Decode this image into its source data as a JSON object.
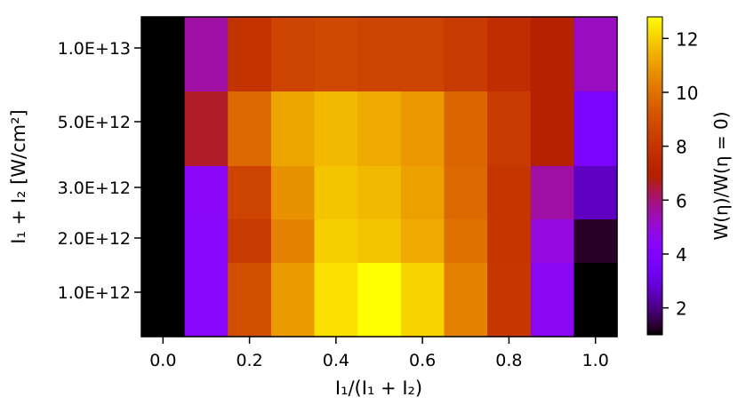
{
  "chart_data": {
    "type": "heatmap",
    "title": "",
    "xlabel": "I₁/(I₁ + I₂)",
    "ylabel": "I₁ + I₂ [W/cm²]",
    "colorbar_label": "W(η)/W(η = 0)",
    "colormap": "gnuplot",
    "x_ticks": [
      "0.0",
      "0.2",
      "0.4",
      "0.6",
      "0.8",
      "1.0"
    ],
    "y_ticks": [
      "1.0E+13",
      "5.0E+12",
      "3.0E+12",
      "2.0E+12",
      "1.0E+12"
    ],
    "colorbar_ticks": [
      "2",
      "4",
      "6",
      "8",
      "10",
      "12"
    ],
    "colorbar_range": [
      1.0,
      12.8
    ],
    "x": [
      0.0,
      0.1,
      0.2,
      0.3,
      0.4,
      0.5,
      0.6,
      0.7,
      0.8,
      0.9,
      1.0
    ],
    "rows": [
      {
        "intensity": "1.0E+13",
        "values": [
          1.0,
          5.6,
          7.9,
          8.6,
          8.8,
          8.6,
          8.6,
          8.2,
          7.6,
          7.0,
          5.3
        ]
      },
      {
        "intensity": "5.0E+12",
        "values": [
          1.0,
          6.6,
          9.8,
          11.2,
          11.6,
          11.3,
          10.9,
          9.7,
          8.2,
          6.9,
          3.8
        ]
      },
      {
        "intensity": "3.0E+12",
        "values": [
          1.0,
          4.4,
          8.6,
          10.8,
          11.8,
          11.6,
          11.1,
          9.8,
          8.0,
          5.6,
          2.6
        ]
      },
      {
        "intensity": "2.0E+12",
        "values": [
          1.0,
          4.3,
          8.2,
          10.4,
          12.0,
          11.8,
          11.3,
          10.0,
          8.0,
          4.9,
          1.3
        ]
      },
      {
        "intensity": "1.0E+12",
        "values": [
          1.0,
          4.3,
          8.9,
          11.0,
          12.3,
          12.8,
          12.1,
          10.4,
          8.1,
          4.5,
          1.0
        ]
      }
    ],
    "grid": false
  }
}
